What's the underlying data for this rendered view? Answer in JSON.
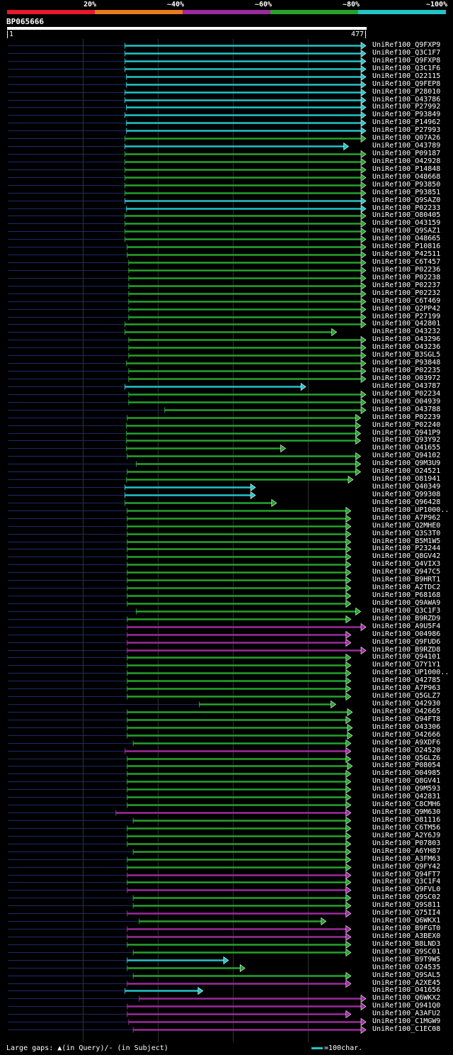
{
  "legend": [
    {
      "label": "20%",
      "color": "#e8192c"
    },
    {
      "label": "~40%",
      "color": "#e77b1d"
    },
    {
      "label": "~60%",
      "color": "#9c2a9c"
    },
    {
      "label": "~80%",
      "color": "#24a32c"
    },
    {
      "label": "~100%",
      "color": "#22c4c8"
    }
  ],
  "query": {
    "name": "BP065666",
    "start": "1",
    "end": "477"
  },
  "colors": {
    "c": "#22c4c8",
    "g": "#24a32c",
    "m": "#9c2a9c",
    "tail": "#1c2a6a",
    "grid": "#303030"
  },
  "footer": {
    "gaps": "Large gaps: ▲(in Query)/- (in Subject)",
    "scale": "=100char."
  },
  "chart_data": {
    "type": "alignment",
    "query_length": 477,
    "hits": [
      {
        "name": "UniRef100_Q9FXP9",
        "start": 157,
        "end": 477,
        "color": "c"
      },
      {
        "name": "UniRef100_Q3C1F7",
        "start": 157,
        "end": 477,
        "color": "c"
      },
      {
        "name": "UniRef100_Q9FXP8",
        "start": 157,
        "end": 477,
        "color": "c"
      },
      {
        "name": "UniRef100_Q3C1F6",
        "start": 157,
        "end": 477,
        "color": "c"
      },
      {
        "name": "UniRef100_O22115",
        "start": 159,
        "end": 477,
        "color": "c"
      },
      {
        "name": "UniRef100_Q9FEP8",
        "start": 159,
        "end": 477,
        "color": "c"
      },
      {
        "name": "UniRef100_P28010",
        "start": 157,
        "end": 477,
        "color": "c"
      },
      {
        "name": "UniRef100_O43786",
        "start": 157,
        "end": 477,
        "color": "c"
      },
      {
        "name": "UniRef100_P27992",
        "start": 159,
        "end": 477,
        "color": "c"
      },
      {
        "name": "UniRef100_P93849",
        "start": 157,
        "end": 477,
        "color": "c"
      },
      {
        "name": "UniRef100_P14962",
        "start": 159,
        "end": 477,
        "color": "c"
      },
      {
        "name": "UniRef100_P27993",
        "start": 159,
        "end": 477,
        "color": "c"
      },
      {
        "name": "UniRef100_Q07A26",
        "start": 157,
        "end": 477,
        "color": "g"
      },
      {
        "name": "UniRef100_O43789",
        "start": 157,
        "end": 454,
        "color": "c"
      },
      {
        "name": "UniRef100_P09187",
        "start": 157,
        "end": 477,
        "color": "g"
      },
      {
        "name": "UniRef100_O42928",
        "start": 157,
        "end": 477,
        "color": "g"
      },
      {
        "name": "UniRef100_P14848",
        "start": 157,
        "end": 477,
        "color": "g"
      },
      {
        "name": "UniRef100_O48668",
        "start": 157,
        "end": 477,
        "color": "g"
      },
      {
        "name": "UniRef100_P93850",
        "start": 157,
        "end": 477,
        "color": "g"
      },
      {
        "name": "UniRef100_P93851",
        "start": 157,
        "end": 477,
        "color": "g"
      },
      {
        "name": "UniRef100_Q9SAZ0",
        "start": 157,
        "end": 477,
        "color": "c"
      },
      {
        "name": "UniRef100_P02233",
        "start": 159,
        "end": 477,
        "color": "c"
      },
      {
        "name": "UniRef100_O80405",
        "start": 157,
        "end": 477,
        "color": "g"
      },
      {
        "name": "UniRef100_O43159",
        "start": 157,
        "end": 477,
        "color": "g"
      },
      {
        "name": "UniRef100_Q9SAZ1",
        "start": 157,
        "end": 477,
        "color": "g"
      },
      {
        "name": "UniRef100_O48665",
        "start": 157,
        "end": 477,
        "color": "g"
      },
      {
        "name": "UniRef100_P10816",
        "start": 160,
        "end": 477,
        "color": "g"
      },
      {
        "name": "UniRef100_P42511",
        "start": 160,
        "end": 477,
        "color": "g"
      },
      {
        "name": "UniRef100_C6T457",
        "start": 162,
        "end": 477,
        "color": "g"
      },
      {
        "name": "UniRef100_P02236",
        "start": 162,
        "end": 477,
        "color": "g"
      },
      {
        "name": "UniRef100_P02238",
        "start": 162,
        "end": 477,
        "color": "g"
      },
      {
        "name": "UniRef100_P02237",
        "start": 162,
        "end": 477,
        "color": "g"
      },
      {
        "name": "UniRef100_P02232",
        "start": 162,
        "end": 477,
        "color": "g"
      },
      {
        "name": "UniRef100_C6T469",
        "start": 162,
        "end": 477,
        "color": "g"
      },
      {
        "name": "UniRef100_Q2PP42",
        "start": 162,
        "end": 477,
        "color": "g"
      },
      {
        "name": "UniRef100_P27199",
        "start": 162,
        "end": 477,
        "color": "g"
      },
      {
        "name": "UniRef100_Q42801",
        "start": 157,
        "end": 477,
        "color": "g"
      },
      {
        "name": "UniRef100_O43232",
        "start": 157,
        "end": 438,
        "color": "g"
      },
      {
        "name": "UniRef100_O43296",
        "start": 162,
        "end": 477,
        "color": "g"
      },
      {
        "name": "UniRef100_O43236",
        "start": 162,
        "end": 477,
        "color": "g"
      },
      {
        "name": "UniRef100_B3SGL5",
        "start": 162,
        "end": 477,
        "color": "g"
      },
      {
        "name": "UniRef100_P93848",
        "start": 159,
        "end": 477,
        "color": "g"
      },
      {
        "name": "UniRef100_P02235",
        "start": 162,
        "end": 477,
        "color": "g"
      },
      {
        "name": "UniRef100_O03972",
        "start": 162,
        "end": 477,
        "color": "g"
      },
      {
        "name": "UniRef100_O43787",
        "start": 157,
        "end": 397,
        "color": "c"
      },
      {
        "name": "UniRef100_P02234",
        "start": 162,
        "end": 477,
        "color": "g"
      },
      {
        "name": "UniRef100_O04939",
        "start": 162,
        "end": 477,
        "color": "g"
      },
      {
        "name": "UniRef100_O43788",
        "start": 210,
        "end": 477,
        "color": "g"
      },
      {
        "name": "UniRef100_P02239",
        "start": 160,
        "end": 470,
        "color": "g"
      },
      {
        "name": "UniRef100_P02240",
        "start": 159,
        "end": 470,
        "color": "g"
      },
      {
        "name": "UniRef100_Q941P9",
        "start": 159,
        "end": 470,
        "color": "g"
      },
      {
        "name": "UniRef100_Q93Y92",
        "start": 159,
        "end": 470,
        "color": "g"
      },
      {
        "name": "UniRef100_O41655",
        "start": 159,
        "end": 370,
        "color": "g"
      },
      {
        "name": "UniRef100_Q94102",
        "start": 160,
        "end": 470,
        "color": "g"
      },
      {
        "name": "UniRef100_Q9M3U9",
        "start": 172,
        "end": 470,
        "color": "g"
      },
      {
        "name": "UniRef100_O24521",
        "start": 160,
        "end": 470,
        "color": "g"
      },
      {
        "name": "UniRef100_O81941",
        "start": 159,
        "end": 460,
        "color": "g"
      },
      {
        "name": "UniRef100_Q40349",
        "start": 157,
        "end": 330,
        "color": "c"
      },
      {
        "name": "UniRef100_Q99308",
        "start": 157,
        "end": 330,
        "color": "c"
      },
      {
        "name": "UniRef100_Q96428",
        "start": 157,
        "end": 358,
        "color": "g"
      },
      {
        "name": "UniRef100_UP1000..",
        "start": 160,
        "end": 457,
        "color": "g"
      },
      {
        "name": "UniRef100_A7P962",
        "start": 160,
        "end": 457,
        "color": "g"
      },
      {
        "name": "UniRef100_Q2MHE0",
        "start": 160,
        "end": 457,
        "color": "g"
      },
      {
        "name": "UniRef100_Q3S3T0",
        "start": 160,
        "end": 457,
        "color": "g"
      },
      {
        "name": "UniRef100_B5M1W5",
        "start": 160,
        "end": 457,
        "color": "g"
      },
      {
        "name": "UniRef100_P23244",
        "start": 160,
        "end": 457,
        "color": "g"
      },
      {
        "name": "UniRef100_Q8GV42",
        "start": 160,
        "end": 457,
        "color": "g"
      },
      {
        "name": "UniRef100_Q4VIX3",
        "start": 160,
        "end": 457,
        "color": "g"
      },
      {
        "name": "UniRef100_Q947C5",
        "start": 160,
        "end": 457,
        "color": "g"
      },
      {
        "name": "UniRef100_B9HRT1",
        "start": 160,
        "end": 457,
        "color": "g"
      },
      {
        "name": "UniRef100_A2TDC2",
        "start": 160,
        "end": 457,
        "color": "g"
      },
      {
        "name": "UniRef100_P68168",
        "start": 160,
        "end": 457,
        "color": "g"
      },
      {
        "name": "UniRef100_Q9AWA9",
        "start": 160,
        "end": 457,
        "color": "g"
      },
      {
        "name": "UniRef100_Q3C1F3",
        "start": 172,
        "end": 470,
        "color": "g"
      },
      {
        "name": "UniRef100_B9RZD9",
        "start": 160,
        "end": 457,
        "color": "g"
      },
      {
        "name": "UniRef100_A9U5F4",
        "start": 160,
        "end": 477,
        "color": "m"
      },
      {
        "name": "UniRef100_O04986",
        "start": 160,
        "end": 457,
        "color": "m"
      },
      {
        "name": "UniRef100_Q9FUD6",
        "start": 160,
        "end": 457,
        "color": "m"
      },
      {
        "name": "UniRef100_B9RZD8",
        "start": 160,
        "end": 477,
        "color": "m"
      },
      {
        "name": "UniRef100_Q94101",
        "start": 160,
        "end": 457,
        "color": "g"
      },
      {
        "name": "UniRef100_Q7Y1Y1",
        "start": 160,
        "end": 457,
        "color": "g"
      },
      {
        "name": "UniRef100_UP1000..",
        "start": 160,
        "end": 457,
        "color": "g"
      },
      {
        "name": "UniRef100_Q42785",
        "start": 160,
        "end": 457,
        "color": "g"
      },
      {
        "name": "UniRef100_A7P963",
        "start": 160,
        "end": 457,
        "color": "g"
      },
      {
        "name": "UniRef100_Q5GLZ7",
        "start": 160,
        "end": 457,
        "color": "g"
      },
      {
        "name": "UniRef100_Q42930",
        "start": 256,
        "end": 437,
        "color": "g"
      },
      {
        "name": "UniRef100_O42665",
        "start": 160,
        "end": 459,
        "color": "g"
      },
      {
        "name": "UniRef100_Q94FT8",
        "start": 160,
        "end": 457,
        "color": "g"
      },
      {
        "name": "UniRef100_O43306",
        "start": 160,
        "end": 459,
        "color": "g"
      },
      {
        "name": "UniRef100_O42666",
        "start": 160,
        "end": 459,
        "color": "g"
      },
      {
        "name": "UniRef100_A9XDF6",
        "start": 168,
        "end": 457,
        "color": "g"
      },
      {
        "name": "UniRef100_O24520",
        "start": 157,
        "end": 457,
        "color": "m"
      },
      {
        "name": "UniRef100_Q5GLZ6",
        "start": 160,
        "end": 457,
        "color": "g"
      },
      {
        "name": "UniRef100_P08054",
        "start": 160,
        "end": 459,
        "color": "g"
      },
      {
        "name": "UniRef100_O04985",
        "start": 160,
        "end": 457,
        "color": "g"
      },
      {
        "name": "UniRef100_Q8GV41",
        "start": 160,
        "end": 457,
        "color": "g"
      },
      {
        "name": "UniRef100_Q9M593",
        "start": 160,
        "end": 457,
        "color": "g"
      },
      {
        "name": "UniRef100_Q42831",
        "start": 160,
        "end": 457,
        "color": "g"
      },
      {
        "name": "UniRef100_C8CMH6",
        "start": 160,
        "end": 457,
        "color": "g"
      },
      {
        "name": "UniRef100_Q9M630",
        "start": 145,
        "end": 457,
        "color": "m"
      },
      {
        "name": "UniRef100_O81116",
        "start": 168,
        "end": 457,
        "color": "g"
      },
      {
        "name": "UniRef100_C6TM56",
        "start": 160,
        "end": 457,
        "color": "g"
      },
      {
        "name": "UniRef100_A2Y6J9",
        "start": 160,
        "end": 457,
        "color": "g"
      },
      {
        "name": "UniRef100_P07803",
        "start": 160,
        "end": 457,
        "color": "g"
      },
      {
        "name": "UniRef100_A6YH87",
        "start": 168,
        "end": 457,
        "color": "g"
      },
      {
        "name": "UniRef100_A3FM63",
        "start": 160,
        "end": 457,
        "color": "g"
      },
      {
        "name": "UniRef100_Q9FY42",
        "start": 160,
        "end": 457,
        "color": "g"
      },
      {
        "name": "UniRef100_Q94FT7",
        "start": 160,
        "end": 457,
        "color": "m"
      },
      {
        "name": "UniRef100_Q3C1F4",
        "start": 160,
        "end": 457,
        "color": "g"
      },
      {
        "name": "UniRef100_Q9FVL0",
        "start": 160,
        "end": 457,
        "color": "m"
      },
      {
        "name": "UniRef100_Q9SC02",
        "start": 168,
        "end": 457,
        "color": "g"
      },
      {
        "name": "UniRef100_Q9S811",
        "start": 168,
        "end": 457,
        "color": "g"
      },
      {
        "name": "UniRef100_Q75II4",
        "start": 160,
        "end": 457,
        "color": "m"
      },
      {
        "name": "UniRef100_Q6WKX1",
        "start": 176,
        "end": 424,
        "color": "g"
      },
      {
        "name": "UniRef100_B9FGT0",
        "start": 160,
        "end": 457,
        "color": "m"
      },
      {
        "name": "UniRef100_A3BEX0",
        "start": 160,
        "end": 457,
        "color": "m"
      },
      {
        "name": "UniRef100_B8LND3",
        "start": 160,
        "end": 457,
        "color": "g"
      },
      {
        "name": "UniRef100_Q9SC01",
        "start": 168,
        "end": 457,
        "color": "g"
      },
      {
        "name": "UniRef100_B9T9W5",
        "start": 160,
        "end": 294,
        "color": "c"
      },
      {
        "name": "UniRef100_O24535",
        "start": 160,
        "end": 316,
        "color": "g"
      },
      {
        "name": "UniRef100_Q9SAL5",
        "start": 168,
        "end": 457,
        "color": "g"
      },
      {
        "name": "UniRef100_A2XE45",
        "start": 160,
        "end": 457,
        "color": "m"
      },
      {
        "name": "UniRef100_O41656",
        "start": 157,
        "end": 260,
        "color": "c"
      },
      {
        "name": "UniRef100_Q6WKX2",
        "start": 176,
        "end": 477,
        "color": "m"
      },
      {
        "name": "UniRef100_Q941Q0",
        "start": 160,
        "end": 477,
        "color": "m"
      },
      {
        "name": "UniRef100_A3AFU2",
        "start": 160,
        "end": 457,
        "color": "m"
      },
      {
        "name": "UniRef100_C1MGW9",
        "start": 162,
        "end": 477,
        "color": "m"
      },
      {
        "name": "UniRef100_C1EC08",
        "start": 168,
        "end": 477,
        "color": "m"
      }
    ]
  }
}
